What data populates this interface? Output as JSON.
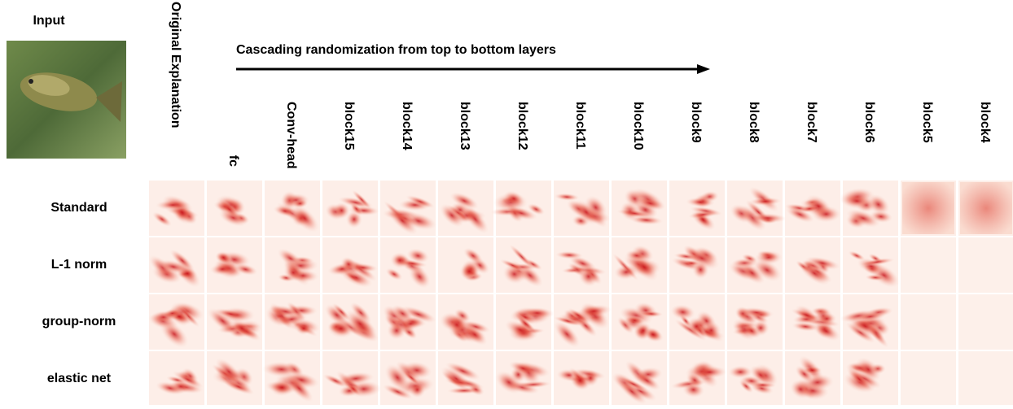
{
  "input_label": "Input",
  "arrow_caption": "Cascading randomization from top to bottom layers",
  "column_labels": [
    "Original Explanation",
    "fc",
    "Conv-head",
    "block15",
    "block14",
    "block13",
    "block12",
    "block11",
    "block10",
    "block9",
    "block8",
    "block7",
    "block6",
    "block5",
    "block4"
  ],
  "row_labels": [
    "Standard",
    "L-1 norm",
    "group-norm",
    "elastic net"
  ]
}
